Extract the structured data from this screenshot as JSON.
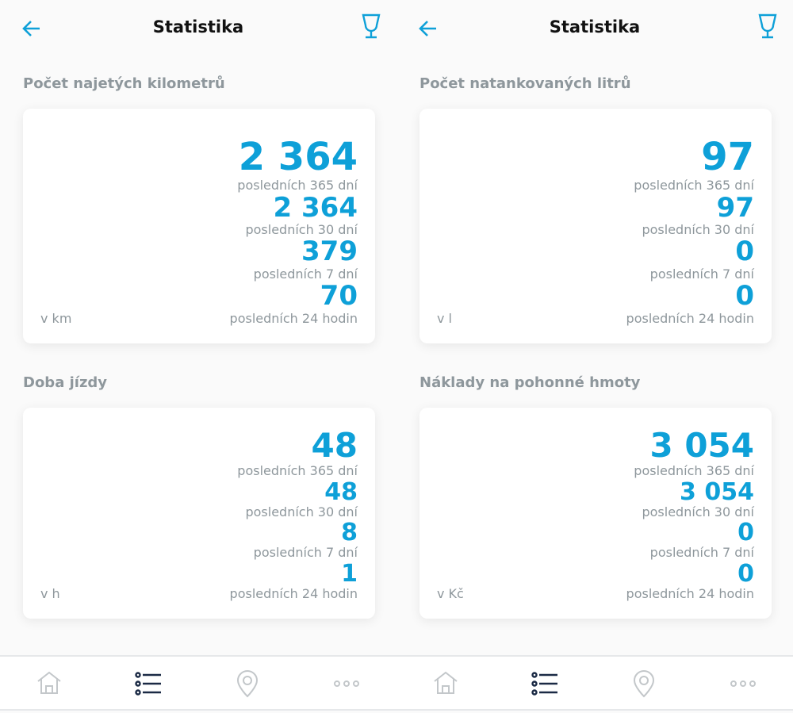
{
  "colors": {
    "accent": "#0ea0d8",
    "muted": "#8e979c",
    "nav_active": "#1b2a45",
    "nav_inactive": "#c3c7ca"
  },
  "panels": [
    {
      "header": {
        "title": "Statistika",
        "back_icon": "arrow-left-icon",
        "action_icon": "glass-icon"
      },
      "sections": [
        {
          "title": "Počet najetých kilometrů",
          "unit": "v km",
          "rows": [
            {
              "value": "2 364",
              "label": "posledních 365 dní"
            },
            {
              "value": "2 364",
              "label": "posledních 30 dní"
            },
            {
              "value": "379",
              "label": "posledních 7 dní"
            },
            {
              "value": "70",
              "label": "posledních 24 hodin"
            }
          ]
        },
        {
          "title": "Doba jízdy",
          "unit": "v h",
          "rows": [
            {
              "value": "48",
              "label": "posledních 365 dní"
            },
            {
              "value": "48",
              "label": "posledních 30 dní"
            },
            {
              "value": "8",
              "label": "posledních 7 dní"
            },
            {
              "value": "1",
              "label": "posledních 24 hodin"
            }
          ]
        }
      ]
    },
    {
      "header": {
        "title": "Statistika",
        "back_icon": "arrow-left-icon",
        "action_icon": "glass-icon"
      },
      "sections": [
        {
          "title": "Počet natankovaných litrů",
          "unit": "v l",
          "rows": [
            {
              "value": "97",
              "label": "posledních 365 dní"
            },
            {
              "value": "97",
              "label": "posledních 30 dní"
            },
            {
              "value": "0",
              "label": "posledních 7 dní"
            },
            {
              "value": "0",
              "label": "posledních 24 hodin"
            }
          ]
        },
        {
          "title": "Náklady na pohonné hmoty",
          "unit": "v Kč",
          "rows": [
            {
              "value": "3 054",
              "label": "posledních 365 dní"
            },
            {
              "value": "3 054",
              "label": "posledních 30 dní"
            },
            {
              "value": "0",
              "label": "posledních 7 dní"
            },
            {
              "value": "0",
              "label": "posledních 24 hodin"
            }
          ]
        }
      ]
    }
  ],
  "nav": {
    "items": [
      {
        "icon": "home-icon"
      },
      {
        "icon": "list-icon",
        "active": true
      },
      {
        "icon": "location-pin-icon"
      },
      {
        "icon": "more-icon"
      }
    ]
  }
}
